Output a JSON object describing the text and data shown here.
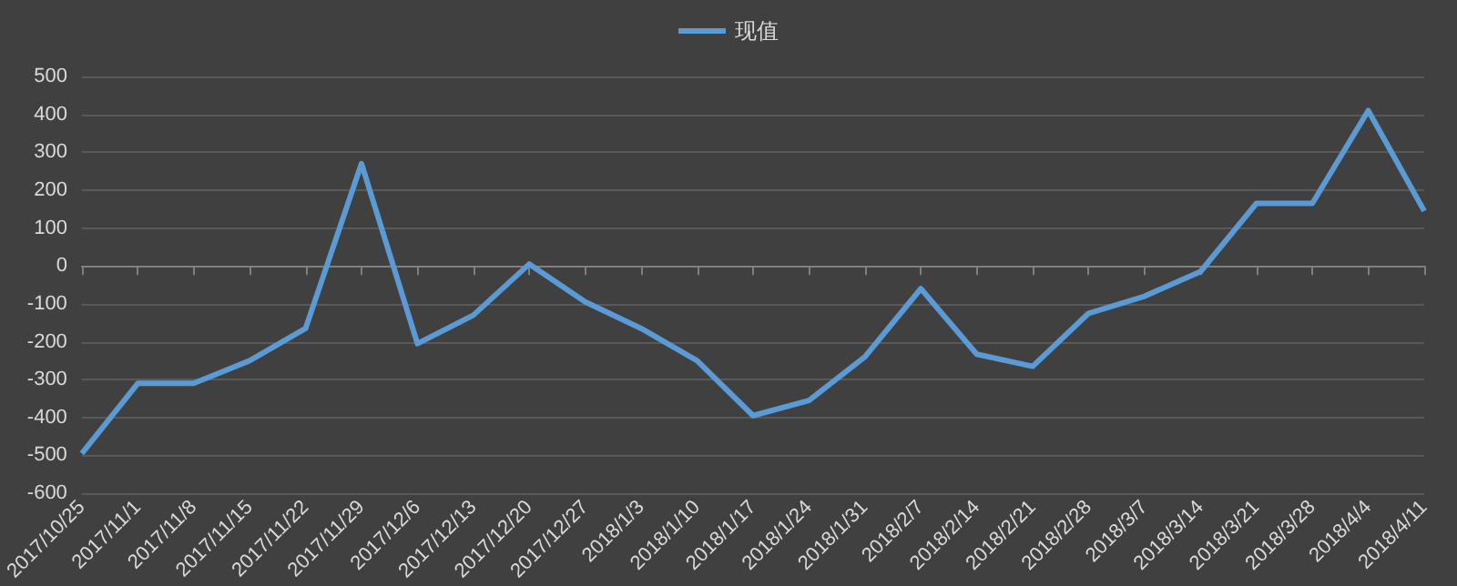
{
  "chart_data": {
    "type": "line",
    "categories": [
      "2017/10/25",
      "2017/11/1",
      "2017/11/8",
      "2017/11/15",
      "2017/11/22",
      "2017/11/29",
      "2017/12/6",
      "2017/12/13",
      "2017/12/20",
      "2017/12/27",
      "2018/1/3",
      "2018/1/10",
      "2018/1/17",
      "2018/1/24",
      "2018/1/31",
      "2018/2/7",
      "2018/2/14",
      "2018/2/21",
      "2018/2/28",
      "2018/3/7",
      "2018/3/14",
      "2018/3/21",
      "2018/3/28",
      "2018/4/4",
      "2018/4/11"
    ],
    "series": [
      {
        "name": "现值",
        "color": "#5b9bd5",
        "values": [
          -495,
          -310,
          -310,
          -250,
          -165,
          270,
          -205,
          -130,
          5,
          -95,
          -165,
          -250,
          -395,
          -355,
          -240,
          -60,
          -233,
          -265,
          -125,
          -80,
          -15,
          165,
          165,
          410,
          145
        ]
      }
    ],
    "ylim": [
      -600,
      500
    ],
    "yticks": [
      -600,
      -500,
      -400,
      -300,
      -200,
      -100,
      0,
      100,
      200,
      300,
      400,
      500
    ],
    "grid": "y",
    "legend": "top",
    "marker": "none",
    "line_style": "solid"
  }
}
